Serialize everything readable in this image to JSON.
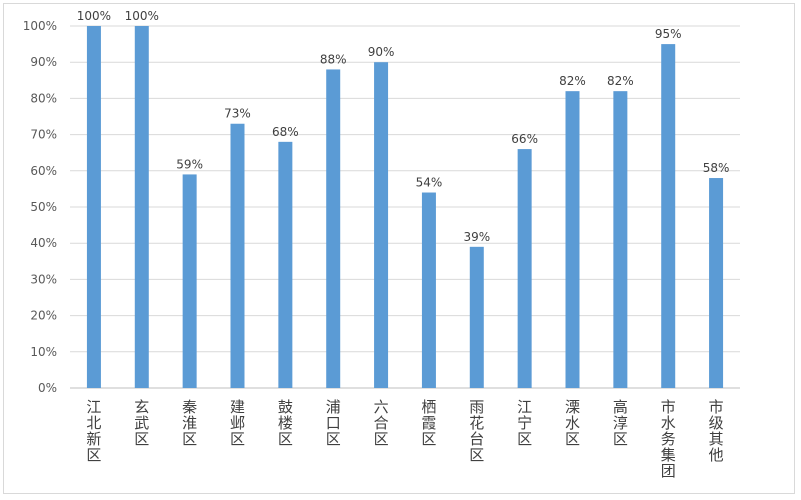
{
  "chart_data": {
    "type": "bar",
    "categories": [
      "江北新区",
      "玄武区",
      "秦淮区",
      "建邺区",
      "鼓楼区",
      "浦口区",
      "六合区",
      "栖霞区",
      "雨花台区",
      "江宁区",
      "溧水区",
      "高淳区",
      "市水务集团",
      "市级其他"
    ],
    "values": [
      100,
      100,
      59,
      73,
      68,
      88,
      90,
      54,
      39,
      66,
      82,
      82,
      95,
      58
    ],
    "value_labels": [
      "100%",
      "100%",
      "59%",
      "73%",
      "68%",
      "88%",
      "90%",
      "54%",
      "39%",
      "66%",
      "82%",
      "82%",
      "95%",
      "58%"
    ],
    "yticks": [
      "0%",
      "10%",
      "20%",
      "30%",
      "40%",
      "50%",
      "60%",
      "70%",
      "80%",
      "90%",
      "100%"
    ],
    "ylim": [
      0,
      100
    ],
    "grid": true,
    "bar_color": "#5b9bd5",
    "title": "",
    "xlabel": "",
    "ylabel": ""
  }
}
